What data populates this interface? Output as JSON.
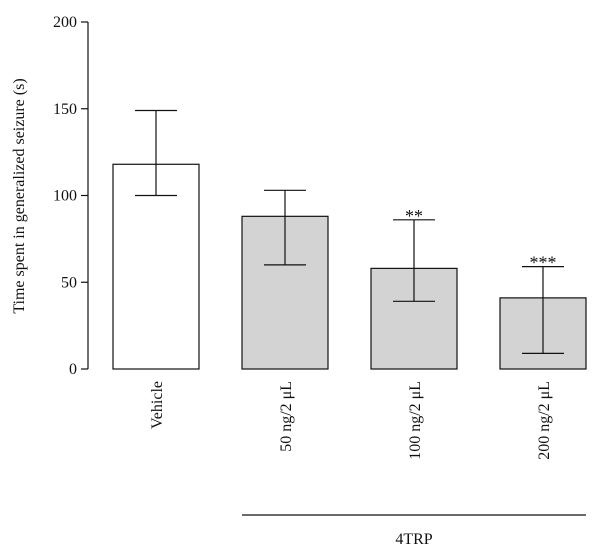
{
  "chart_data": {
    "type": "bar",
    "ylabel": "Time spent in generalized seizure (s)",
    "ylim": [
      0,
      200
    ],
    "yticks": [
      0,
      50,
      100,
      150,
      200
    ],
    "categories": [
      "Vehicle",
      "50 ng/2 μL",
      "100 ng/2 μL",
      "200 ng/2 μL"
    ],
    "values": [
      118,
      88,
      58,
      41
    ],
    "error_upper": [
      149,
      103,
      86,
      59
    ],
    "error_lower": [
      100,
      60,
      39,
      9
    ],
    "significance": [
      "",
      "",
      "**",
      "***"
    ],
    "bar_colors": [
      "#ffffff",
      "#d3d3d3",
      "#d3d3d3",
      "#d3d3d3"
    ],
    "group_label": "4TRP",
    "group_span": [
      1,
      3
    ]
  }
}
